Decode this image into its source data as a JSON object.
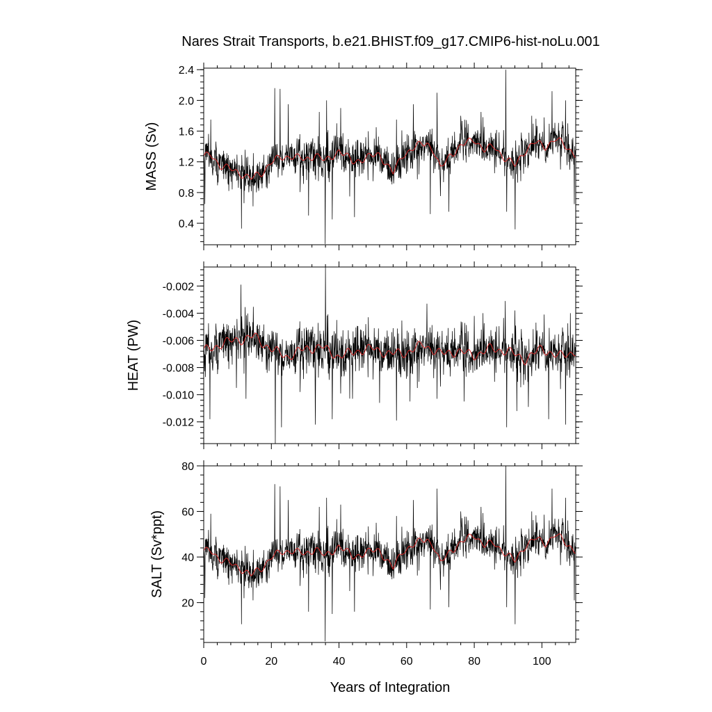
{
  "figure": {
    "title": "Nares Strait Transports, b.e21.BHIST.f09_g17.CMIP6-hist-noLu.001",
    "xlabel": "Years of Integration"
  },
  "chart_data": [
    {
      "type": "line",
      "ylabel": "MASS (Sv)",
      "xlim": [
        0,
        110
      ],
      "ylim": [
        0.12,
        2.42
      ],
      "yticks": [
        0.4,
        0.8,
        1.2,
        1.6,
        2.0,
        2.4
      ],
      "ytick_labels": [
        "0.4",
        "0.8",
        "1.2",
        "1.6",
        "2.0",
        "2.4"
      ],
      "xticks": [
        0,
        20,
        40,
        60,
        80,
        100
      ],
      "xtick_labels": [
        "0",
        "20",
        "40",
        "60",
        "80",
        "100"
      ],
      "series": [
        {
          "role": "monthly",
          "color": "#000000",
          "noise": 0.13,
          "x": [
            0,
            2,
            5,
            8,
            11,
            14,
            17,
            20,
            23,
            26,
            30,
            33,
            36,
            40,
            44,
            48,
            52,
            56,
            59,
            63,
            66,
            68,
            70,
            73,
            76,
            80,
            83,
            86,
            89,
            92,
            95,
            98,
            101,
            104,
            107,
            110
          ],
          "y": [
            1.25,
            1.3,
            1.15,
            1.1,
            1.05,
            0.98,
            1.05,
            1.2,
            1.25,
            1.28,
            1.22,
            1.3,
            1.2,
            1.35,
            1.2,
            1.25,
            1.3,
            1.05,
            1.3,
            1.4,
            1.45,
            1.35,
            1.1,
            1.3,
            1.4,
            1.5,
            1.35,
            1.4,
            1.25,
            1.15,
            1.35,
            1.45,
            1.4,
            1.5,
            1.4,
            1.3
          ],
          "spikes": [
            [
              0.3,
              0.65
            ],
            [
              2.1,
              1.75
            ],
            [
              11.2,
              0.33
            ],
            [
              14.6,
              0.62
            ],
            [
              21.0,
              2.16
            ],
            [
              22.6,
              2.15
            ],
            [
              25.0,
              1.95
            ],
            [
              31.0,
              0.5
            ],
            [
              34.2,
              1.85
            ],
            [
              35.9,
              0.13
            ],
            [
              36.3,
              2.0
            ],
            [
              38.0,
              0.45
            ],
            [
              40.5,
              1.9
            ],
            [
              44.6,
              0.48
            ],
            [
              51.0,
              1.65
            ],
            [
              57.0,
              1.75
            ],
            [
              62.0,
              1.95
            ],
            [
              67.0,
              0.52
            ],
            [
              69.0,
              2.1
            ],
            [
              72.5,
              0.55
            ],
            [
              76.0,
              1.8
            ],
            [
              82.0,
              1.85
            ],
            [
              89.3,
              2.4
            ],
            [
              89.6,
              0.55
            ],
            [
              92.1,
              0.32
            ],
            [
              97.0,
              1.8
            ],
            [
              103.0,
              2.12
            ],
            [
              107.0,
              2.0
            ],
            [
              109.6,
              0.65
            ]
          ]
        },
        {
          "role": "smoothed",
          "color": "#d62828",
          "x": [
            0,
            2,
            5,
            8,
            11,
            14,
            17,
            20,
            23,
            26,
            30,
            33,
            36,
            40,
            44,
            48,
            52,
            56,
            59,
            63,
            66,
            68,
            70,
            73,
            76,
            80,
            83,
            86,
            89,
            92,
            95,
            98,
            101,
            104,
            107,
            110
          ],
          "y": [
            1.25,
            1.3,
            1.15,
            1.1,
            1.05,
            0.98,
            1.05,
            1.2,
            1.25,
            1.28,
            1.22,
            1.3,
            1.2,
            1.35,
            1.2,
            1.25,
            1.3,
            1.05,
            1.3,
            1.4,
            1.45,
            1.35,
            1.1,
            1.3,
            1.4,
            1.5,
            1.35,
            1.4,
            1.25,
            1.15,
            1.35,
            1.45,
            1.4,
            1.5,
            1.4,
            1.3
          ]
        }
      ]
    },
    {
      "type": "line",
      "ylabel": "HEAT (PW)",
      "xlim": [
        0,
        110
      ],
      "ylim": [
        -0.0136,
        -0.0006
      ],
      "yticks": [
        -0.012,
        -0.01,
        -0.008,
        -0.006,
        -0.004,
        -0.002
      ],
      "ytick_labels": [
        "-0.012",
        "-0.010",
        "-0.008",
        "-0.006",
        "-0.004",
        "-0.002"
      ],
      "xticks": [
        0,
        20,
        40,
        60,
        80,
        100
      ],
      "xtick_labels": [
        "0",
        "20",
        "40",
        "60",
        "80",
        "100"
      ],
      "series": [
        {
          "role": "monthly",
          "color": "#000000",
          "noise": 0.0009,
          "x": [
            0,
            3,
            6,
            9,
            12,
            15,
            18,
            21,
            25,
            30,
            35,
            40,
            45,
            50,
            55,
            60,
            65,
            70,
            75,
            80,
            85,
            90,
            95,
            100,
            105,
            110
          ],
          "y": [
            -0.0068,
            -0.0065,
            -0.0062,
            -0.006,
            -0.0059,
            -0.0057,
            -0.0063,
            -0.0068,
            -0.0072,
            -0.0066,
            -0.0065,
            -0.0072,
            -0.0068,
            -0.0066,
            -0.007,
            -0.0069,
            -0.0063,
            -0.007,
            -0.0068,
            -0.0071,
            -0.0066,
            -0.0068,
            -0.0074,
            -0.0066,
            -0.0072,
            -0.0068
          ],
          "spikes": [
            [
              0.5,
              -0.0087
            ],
            [
              1.8,
              -0.0118
            ],
            [
              9.7,
              -0.0095
            ],
            [
              11.0,
              -0.0019
            ],
            [
              12.5,
              -0.0103
            ],
            [
              21.2,
              -0.0137
            ],
            [
              23.0,
              -0.0124
            ],
            [
              29.0,
              -0.0053
            ],
            [
              33.0,
              -0.0122
            ],
            [
              36.0,
              -0.0006
            ],
            [
              38.0,
              -0.0118
            ],
            [
              44.0,
              -0.0103
            ],
            [
              52.0,
              -0.0106
            ],
            [
              57.0,
              -0.0119
            ],
            [
              61.0,
              -0.0105
            ],
            [
              66.0,
              -0.0033
            ],
            [
              69.0,
              -0.0103
            ],
            [
              77.0,
              -0.0105
            ],
            [
              80.0,
              -0.0042
            ],
            [
              89.2,
              -0.0031
            ],
            [
              89.6,
              -0.0124
            ],
            [
              92.0,
              -0.0038
            ],
            [
              92.6,
              -0.0112
            ],
            [
              96.0,
              -0.0109
            ],
            [
              102.0,
              -0.0118
            ],
            [
              107.0,
              -0.0122
            ],
            [
              108.4,
              -0.004
            ]
          ]
        },
        {
          "role": "smoothed",
          "color": "#d62828",
          "x": [
            0,
            3,
            6,
            9,
            12,
            15,
            18,
            21,
            25,
            30,
            35,
            40,
            45,
            50,
            55,
            60,
            65,
            70,
            75,
            80,
            85,
            90,
            95,
            100,
            105,
            110
          ],
          "y": [
            -0.0068,
            -0.0065,
            -0.0062,
            -0.006,
            -0.0059,
            -0.0057,
            -0.0063,
            -0.0068,
            -0.0072,
            -0.0066,
            -0.0065,
            -0.0072,
            -0.0068,
            -0.0066,
            -0.007,
            -0.0069,
            -0.0063,
            -0.007,
            -0.0068,
            -0.0071,
            -0.0066,
            -0.0068,
            -0.0074,
            -0.0066,
            -0.0072,
            -0.0068
          ]
        }
      ]
    },
    {
      "type": "line",
      "ylabel": "SALT (Sv*ppt)",
      "xlim": [
        0,
        110
      ],
      "ylim": [
        2.5,
        80
      ],
      "yticks": [
        20,
        40,
        60,
        80
      ],
      "ytick_labels": [
        "20",
        "40",
        "60",
        "80"
      ],
      "xticks": [
        0,
        20,
        40,
        60,
        80,
        100
      ],
      "xtick_labels": [
        "0",
        "20",
        "40",
        "60",
        "80",
        "100"
      ],
      "series": [
        {
          "role": "monthly",
          "color": "#000000",
          "noise": 4.3,
          "x": [
            0,
            2,
            5,
            8,
            11,
            14,
            17,
            20,
            23,
            26,
            30,
            33,
            36,
            40,
            44,
            48,
            52,
            56,
            59,
            63,
            66,
            68,
            70,
            73,
            76,
            80,
            83,
            86,
            89,
            92,
            95,
            98,
            101,
            104,
            107,
            110
          ],
          "y": [
            42,
            43,
            39,
            37,
            35,
            32,
            35,
            40,
            42,
            43,
            41,
            44,
            40,
            45,
            40,
            42,
            43,
            35,
            43,
            46,
            48,
            45,
            37,
            43,
            46,
            50,
            45,
            46,
            42,
            38,
            45,
            48,
            46,
            50,
            46,
            43
          ],
          "spikes": [
            [
              0.3,
              22
            ],
            [
              2.1,
              59
            ],
            [
              11.2,
              10.5
            ],
            [
              14.6,
              21
            ],
            [
              21.0,
              72
            ],
            [
              22.6,
              71
            ],
            [
              25.0,
              65
            ],
            [
              31.0,
              16
            ],
            [
              34.2,
              62
            ],
            [
              35.9,
              3
            ],
            [
              36.3,
              66
            ],
            [
              38.0,
              15
            ],
            [
              40.5,
              63
            ],
            [
              44.6,
              16
            ],
            [
              51.0,
              55
            ],
            [
              57.0,
              58
            ],
            [
              62.0,
              65
            ],
            [
              67.0,
              17
            ],
            [
              69.0,
              70
            ],
            [
              72.5,
              18
            ],
            [
              76.0,
              60
            ],
            [
              82.0,
              62
            ],
            [
              89.3,
              80
            ],
            [
              89.6,
              18
            ],
            [
              92.1,
              10.5
            ],
            [
              97.0,
              60
            ],
            [
              103.0,
              70
            ],
            [
              107.0,
              66
            ],
            [
              109.6,
              21
            ]
          ]
        },
        {
          "role": "smoothed",
          "color": "#d62828",
          "x": [
            0,
            2,
            5,
            8,
            11,
            14,
            17,
            20,
            23,
            26,
            30,
            33,
            36,
            40,
            44,
            48,
            52,
            56,
            59,
            63,
            66,
            68,
            70,
            73,
            76,
            80,
            83,
            86,
            89,
            92,
            95,
            98,
            101,
            104,
            107,
            110
          ],
          "y": [
            42,
            43,
            39,
            37,
            35,
            32,
            35,
            40,
            42,
            43,
            41,
            44,
            40,
            45,
            40,
            42,
            43,
            35,
            43,
            46,
            48,
            45,
            37,
            43,
            46,
            50,
            45,
            46,
            42,
            38,
            45,
            48,
            46,
            50,
            46,
            43
          ]
        }
      ]
    }
  ]
}
